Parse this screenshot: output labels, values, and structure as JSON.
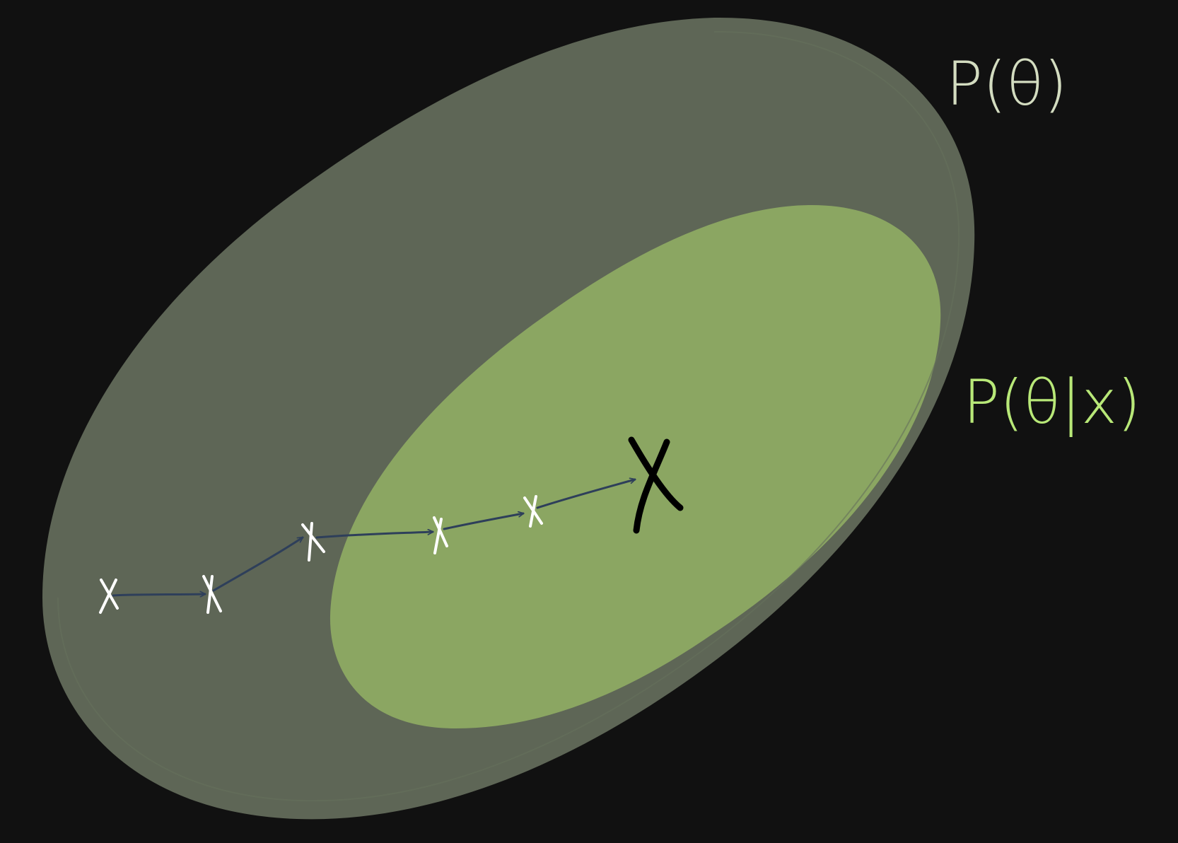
{
  "labels": {
    "prior": "P(θ)",
    "posterior": "P(θ|x)"
  },
  "colors": {
    "background": "#111111",
    "prior_region": "#5e6656",
    "posterior_region": "#8ba662",
    "prior_label": "#d3dcc0",
    "posterior_label": "#b8e878",
    "path_arrow": "#2e3f5a",
    "sample_mark": "#ffffff",
    "final_mark": "#000000"
  },
  "sample_chain": {
    "steps": 6,
    "final_mark_label": "X"
  }
}
